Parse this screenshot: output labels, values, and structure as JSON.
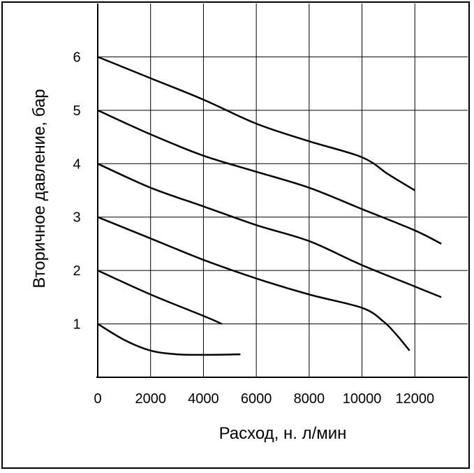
{
  "chart_data": {
    "type": "line",
    "xlabel": "Расход, н. л/мин",
    "ylabel": "Вторичное давление, бар",
    "xlim": [
      0,
      14000
    ],
    "ylim": [
      0,
      7
    ],
    "x_ticks": [
      0,
      2000,
      4000,
      6000,
      8000,
      10000,
      12000
    ],
    "y_ticks": [
      1,
      2,
      3,
      4,
      5,
      6
    ],
    "x_tick_labels": [
      "0",
      "2000",
      "4000",
      "6000",
      "8000",
      "10000",
      "12000"
    ],
    "y_tick_labels": [
      "1",
      "2",
      "3",
      "4",
      "5",
      "6"
    ],
    "x_gridlines": [
      2000,
      4000,
      6000,
      8000,
      10000,
      12000
    ],
    "y_gridlines": [
      1,
      2,
      3,
      4,
      5,
      6
    ],
    "grid": true,
    "series": [
      {
        "x": [
          0,
          2000,
          4000,
          6000,
          8000,
          10000,
          11000,
          12000
        ],
        "y": [
          6.0,
          5.6,
          5.2,
          4.75,
          4.42,
          4.12,
          3.8,
          3.5
        ]
      },
      {
        "x": [
          0,
          2000,
          4000,
          6000,
          8000,
          10000,
          12000,
          13000
        ],
        "y": [
          5.0,
          4.55,
          4.15,
          3.85,
          3.55,
          3.15,
          2.75,
          2.5
        ]
      },
      {
        "x": [
          0,
          2000,
          4000,
          6000,
          8000,
          10000,
          12000,
          13000
        ],
        "y": [
          4.0,
          3.55,
          3.2,
          2.85,
          2.55,
          2.1,
          1.7,
          1.5
        ]
      },
      {
        "x": [
          0,
          2000,
          4000,
          6000,
          8000,
          10000,
          10800,
          11300,
          11800
        ],
        "y": [
          3.0,
          2.6,
          2.2,
          1.85,
          1.55,
          1.3,
          1.05,
          0.8,
          0.5
        ]
      },
      {
        "x": [
          0,
          2000,
          4000,
          4700
        ],
        "y": [
          2.0,
          1.55,
          1.15,
          1.0
        ]
      },
      {
        "x": [
          0,
          1000,
          2000,
          3000,
          4000,
          5400
        ],
        "y": [
          1.0,
          0.7,
          0.5,
          0.43,
          0.42,
          0.43
        ]
      }
    ]
  }
}
